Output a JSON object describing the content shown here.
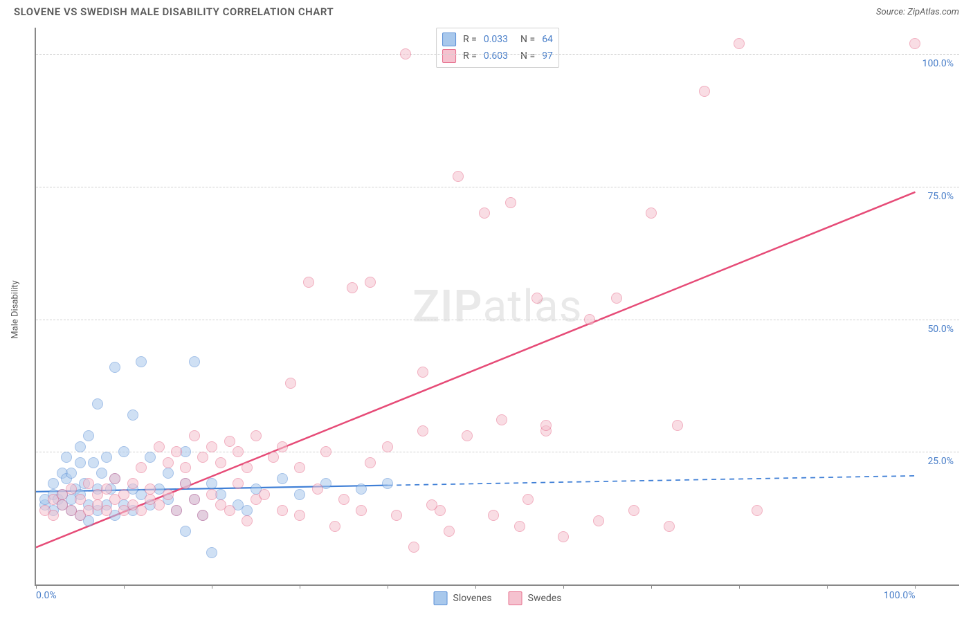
{
  "title": "SLOVENE VS SWEDISH MALE DISABILITY CORRELATION CHART",
  "source_label": "Source: ZipAtlas.com",
  "y_axis_label": "Male Disability",
  "watermark_a": "ZIP",
  "watermark_b": "atlas",
  "chart": {
    "type": "scatter",
    "background_color": "#ffffff",
    "grid_color": "#d0d0d0",
    "axis_color": "#888888",
    "tick_label_color": "#4a7fc9",
    "xlim": [
      0,
      105
    ],
    "ylim": [
      0,
      105
    ],
    "y_ticks": [
      25,
      50,
      75,
      100
    ],
    "y_tick_labels": [
      "25.0%",
      "50.0%",
      "75.0%",
      "100.0%"
    ],
    "x_ticks_minor": [
      0,
      10,
      20,
      30,
      40,
      50,
      60,
      70,
      80,
      90,
      100
    ],
    "x_tick_labels": [
      {
        "pos": 0,
        "label": "0.0%"
      },
      {
        "pos": 100,
        "label": "100.0%"
      }
    ],
    "marker_radius": 8,
    "marker_opacity": 0.55,
    "series": [
      {
        "name": "Slovenes",
        "fill_color": "#a8c8ec",
        "stroke_color": "#5a8fd6",
        "r_label": "R =",
        "r_value": "0.033",
        "n_label": "N =",
        "n_value": "64",
        "trend": {
          "x1": 0,
          "y1": 17.5,
          "x2": 100,
          "y2": 20.5,
          "solid_until_x": 40,
          "color": "#3f7fd6",
          "width": 2.2
        },
        "points": [
          [
            1,
            15
          ],
          [
            1,
            16
          ],
          [
            2,
            17
          ],
          [
            2,
            14
          ],
          [
            2,
            19
          ],
          [
            2.5,
            16
          ],
          [
            3,
            15
          ],
          [
            3,
            17
          ],
          [
            3,
            21
          ],
          [
            3.5,
            20
          ],
          [
            3.5,
            24
          ],
          [
            4,
            14
          ],
          [
            4,
            16
          ],
          [
            4,
            21
          ],
          [
            4.5,
            18
          ],
          [
            5,
            13
          ],
          [
            5,
            17
          ],
          [
            5,
            23
          ],
          [
            5,
            26
          ],
          [
            5.5,
            19
          ],
          [
            6,
            12
          ],
          [
            6,
            15
          ],
          [
            6,
            28
          ],
          [
            6.5,
            23
          ],
          [
            7,
            14
          ],
          [
            7,
            18
          ],
          [
            7,
            34
          ],
          [
            7.5,
            21
          ],
          [
            8,
            15
          ],
          [
            8,
            24
          ],
          [
            8.5,
            18
          ],
          [
            9,
            13
          ],
          [
            9,
            20
          ],
          [
            9,
            41
          ],
          [
            10,
            15
          ],
          [
            10,
            25
          ],
          [
            11,
            14
          ],
          [
            11,
            18
          ],
          [
            11,
            32
          ],
          [
            12,
            17
          ],
          [
            12,
            42
          ],
          [
            13,
            15
          ],
          [
            13,
            24
          ],
          [
            14,
            18
          ],
          [
            15,
            16
          ],
          [
            15,
            21
          ],
          [
            16,
            14
          ],
          [
            17,
            10
          ],
          [
            17,
            25
          ],
          [
            17,
            19
          ],
          [
            18,
            16
          ],
          [
            18,
            42
          ],
          [
            19,
            13
          ],
          [
            20,
            6
          ],
          [
            20,
            19
          ],
          [
            21,
            17
          ],
          [
            23,
            15
          ],
          [
            24,
            14
          ],
          [
            25,
            18
          ],
          [
            28,
            20
          ],
          [
            30,
            17
          ],
          [
            33,
            19
          ],
          [
            37,
            18
          ],
          [
            40,
            19
          ]
        ]
      },
      {
        "name": "Swedes",
        "fill_color": "#f5c2cf",
        "stroke_color": "#e76f8e",
        "r_label": "R =",
        "r_value": "0.603",
        "n_label": "N =",
        "n_value": "97",
        "trend": {
          "x1": 0,
          "y1": 7,
          "x2": 100,
          "y2": 74,
          "solid_until_x": 100,
          "color": "#e64b77",
          "width": 2.5
        },
        "points": [
          [
            1,
            14
          ],
          [
            2,
            13
          ],
          [
            2,
            16
          ],
          [
            3,
            15
          ],
          [
            3,
            17
          ],
          [
            4,
            14
          ],
          [
            4,
            18
          ],
          [
            5,
            13
          ],
          [
            5,
            16
          ],
          [
            6,
            14
          ],
          [
            6,
            19
          ],
          [
            7,
            15
          ],
          [
            7,
            17
          ],
          [
            8,
            14
          ],
          [
            8,
            18
          ],
          [
            9,
            16
          ],
          [
            9,
            20
          ],
          [
            10,
            14
          ],
          [
            10,
            17
          ],
          [
            11,
            15
          ],
          [
            11,
            19
          ],
          [
            12,
            14
          ],
          [
            12,
            22
          ],
          [
            13,
            16
          ],
          [
            13,
            18
          ],
          [
            14,
            15
          ],
          [
            14,
            26
          ],
          [
            15,
            17
          ],
          [
            15,
            23
          ],
          [
            16,
            14
          ],
          [
            16,
            25
          ],
          [
            17,
            19
          ],
          [
            17,
            22
          ],
          [
            18,
            16
          ],
          [
            18,
            28
          ],
          [
            19,
            13
          ],
          [
            19,
            24
          ],
          [
            20,
            17
          ],
          [
            20,
            26
          ],
          [
            21,
            15
          ],
          [
            21,
            23
          ],
          [
            22,
            14
          ],
          [
            22,
            27
          ],
          [
            23,
            19
          ],
          [
            23,
            25
          ],
          [
            24,
            12
          ],
          [
            24,
            22
          ],
          [
            25,
            16
          ],
          [
            25,
            28
          ],
          [
            26,
            17
          ],
          [
            27,
            24
          ],
          [
            28,
            14
          ],
          [
            28,
            26
          ],
          [
            29,
            38
          ],
          [
            30,
            13
          ],
          [
            30,
            22
          ],
          [
            31,
            57
          ],
          [
            32,
            18
          ],
          [
            33,
            25
          ],
          [
            34,
            11
          ],
          [
            35,
            16
          ],
          [
            36,
            56
          ],
          [
            37,
            14
          ],
          [
            38,
            23
          ],
          [
            40,
            26
          ],
          [
            41,
            13
          ],
          [
            42,
            100
          ],
          [
            43,
            7
          ],
          [
            44,
            29
          ],
          [
            44,
            40
          ],
          [
            46,
            14
          ],
          [
            47,
            10
          ],
          [
            48,
            77
          ],
          [
            49,
            28
          ],
          [
            51,
            70
          ],
          [
            52,
            13
          ],
          [
            53,
            31
          ],
          [
            54,
            72
          ],
          [
            55,
            11
          ],
          [
            56,
            16
          ],
          [
            57,
            54
          ],
          [
            58,
            29
          ],
          [
            58,
            30
          ],
          [
            60,
            9
          ],
          [
            63,
            50
          ],
          [
            64,
            12
          ],
          [
            66,
            54
          ],
          [
            68,
            14
          ],
          [
            70,
            70
          ],
          [
            72,
            11
          ],
          [
            73,
            30
          ],
          [
            76,
            93
          ],
          [
            80,
            102
          ],
          [
            82,
            14
          ],
          [
            100,
            102
          ],
          [
            45,
            15
          ],
          [
            38,
            57
          ]
        ]
      }
    ],
    "legend_bottom": [
      {
        "label": "Slovenes",
        "fill": "#a8c8ec",
        "stroke": "#5a8fd6"
      },
      {
        "label": "Swedes",
        "fill": "#f5c2cf",
        "stroke": "#e76f8e"
      }
    ]
  }
}
